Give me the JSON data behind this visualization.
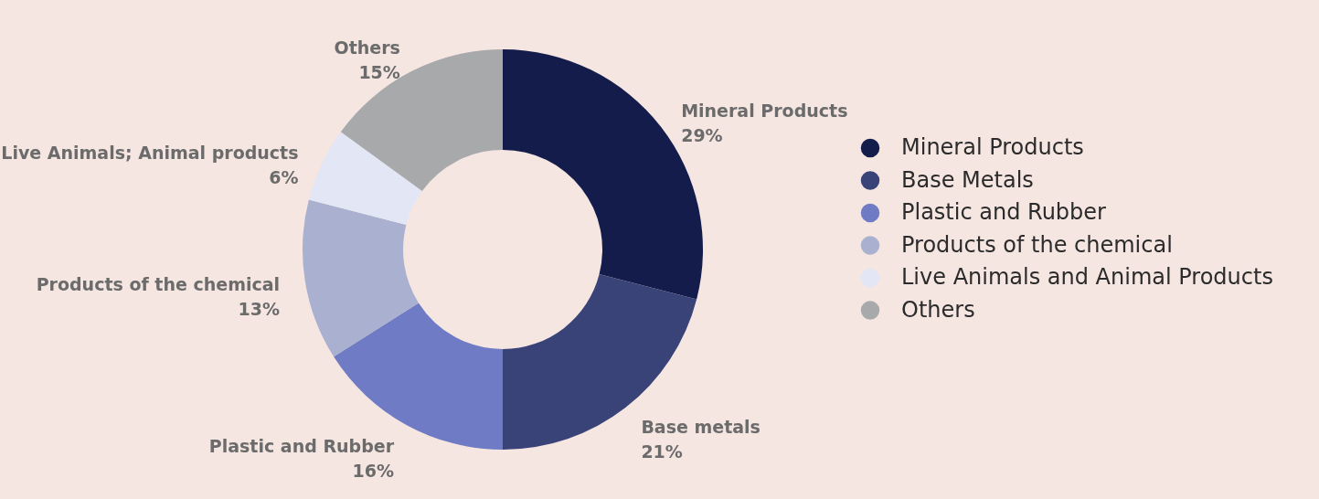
{
  "chart_data": {
    "type": "donut",
    "categories": [
      "Mineral Products",
      "Base Metals",
      "Plastic and Rubber",
      "Products of the chemical",
      "Live Animals and Animal Products",
      "Others"
    ],
    "values": [
      29,
      21,
      16,
      13,
      6,
      15
    ],
    "colors": [
      "#141c4b",
      "#3a4377",
      "#6f7bc4",
      "#aab0cf",
      "#e3e6f5",
      "#a8a9ab"
    ],
    "annotations": [
      "Mineral Products",
      "Base metals",
      "Plastic and Rubber",
      "Products of the chemical",
      "Live Animals; Animal products",
      "Others"
    ],
    "value_labels": [
      "29%",
      "21%",
      "16%",
      "13%",
      "6%",
      "15%"
    ],
    "legend": "right"
  }
}
